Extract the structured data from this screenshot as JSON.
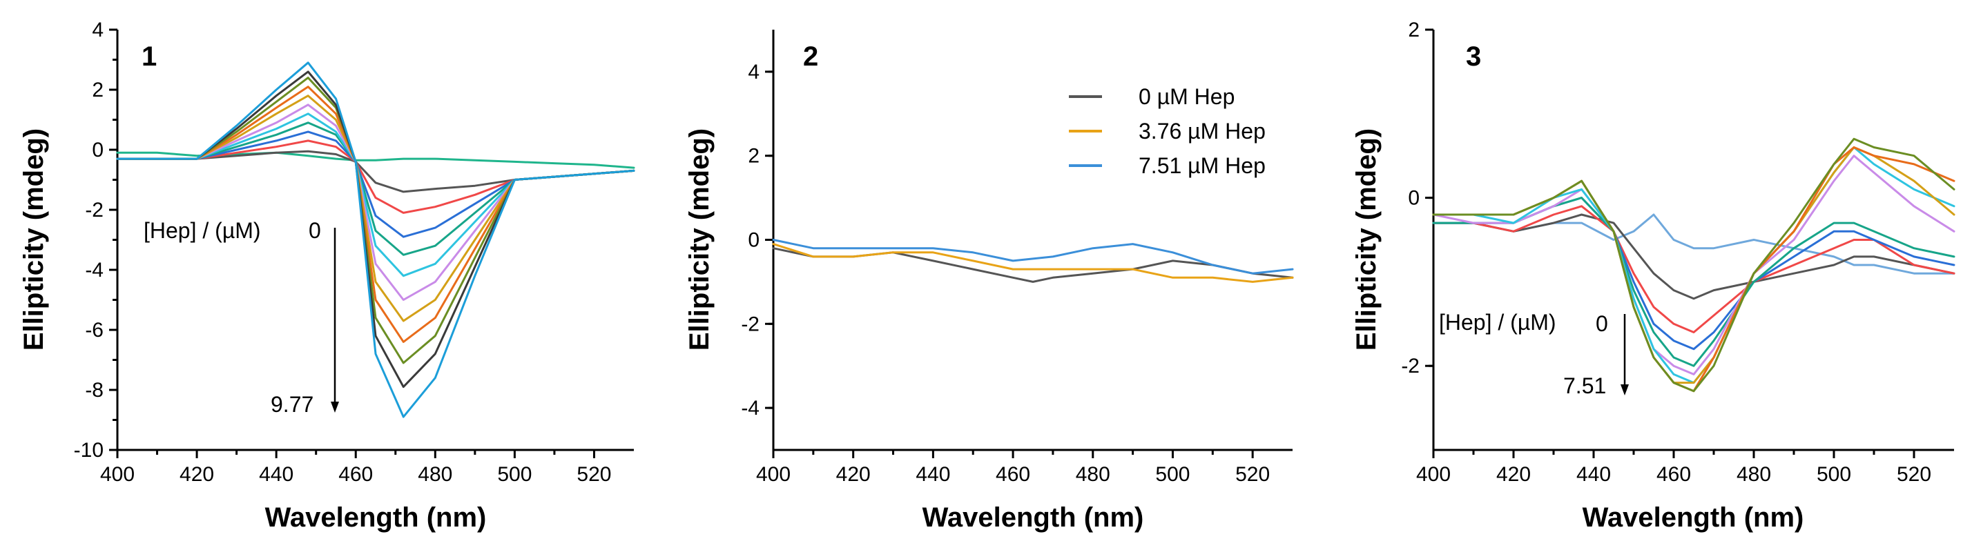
{
  "chart_data": [
    {
      "type": "line",
      "panel_label": "1",
      "xlabel": "Wavelength (nm)",
      "ylabel": "Ellipticity (mdeg)",
      "xlim": [
        400,
        530
      ],
      "ylim": [
        -10,
        4
      ],
      "xticks": [
        400,
        420,
        440,
        460,
        480,
        500,
        520
      ],
      "yticks": [
        -10,
        -8,
        -6,
        -4,
        -2,
        0,
        2,
        4
      ],
      "annotation": {
        "label": "[Hep] / (µM)",
        "start": "0",
        "end": "9.77"
      },
      "series_colors": [
        "#1fb58c",
        "#555555",
        "#f04848",
        "#2a6fd6",
        "#17a589",
        "#2ec4e0",
        "#c98be8",
        "#d4a017",
        "#e86c1a",
        "#6b8e23",
        "#3a3a3a",
        "#1c9ed9"
      ],
      "series": [
        {
          "name": "0",
          "x": [
            400,
            410,
            420,
            430,
            440,
            448,
            455,
            460,
            465,
            472,
            480,
            490,
            500,
            510,
            520,
            530
          ],
          "values": [
            -0.1,
            -0.1,
            -0.2,
            -0.15,
            -0.1,
            -0.2,
            -0.3,
            -0.35,
            -0.35,
            -0.3,
            -0.3,
            -0.35,
            -0.4,
            -0.45,
            -0.5,
            -0.6
          ]
        },
        {
          "name": "s1",
          "x": [
            400,
            410,
            420,
            430,
            440,
            448,
            455,
            460,
            465,
            472,
            480,
            490,
            500,
            510,
            520,
            530
          ],
          "values": [
            -0.3,
            -0.3,
            -0.3,
            -0.2,
            -0.1,
            -0.05,
            -0.15,
            -0.4,
            -1.1,
            -1.4,
            -1.3,
            -1.2,
            -1.0,
            -0.9,
            -0.8,
            -0.7
          ]
        },
        {
          "name": "s2",
          "x": [
            400,
            410,
            420,
            430,
            440,
            448,
            455,
            460,
            465,
            472,
            480,
            490,
            500,
            510,
            520,
            530
          ],
          "values": [
            -0.3,
            -0.3,
            -0.3,
            -0.1,
            0.1,
            0.3,
            0.1,
            -0.4,
            -1.6,
            -2.1,
            -1.9,
            -1.5,
            -1.0,
            -0.9,
            -0.8,
            -0.7
          ]
        },
        {
          "name": "s3",
          "x": [
            400,
            410,
            420,
            430,
            440,
            448,
            455,
            460,
            465,
            472,
            480,
            490,
            500,
            510,
            520,
            530
          ],
          "values": [
            -0.3,
            -0.3,
            -0.3,
            0.0,
            0.3,
            0.6,
            0.3,
            -0.4,
            -2.2,
            -2.9,
            -2.6,
            -1.8,
            -1.0,
            -0.9,
            -0.8,
            -0.7
          ]
        },
        {
          "name": "s4",
          "x": [
            400,
            410,
            420,
            430,
            440,
            448,
            455,
            460,
            465,
            472,
            480,
            490,
            500,
            510,
            520,
            530
          ],
          "values": [
            -0.3,
            -0.3,
            -0.3,
            0.1,
            0.5,
            0.9,
            0.5,
            -0.4,
            -2.7,
            -3.5,
            -3.2,
            -2.1,
            -1.0,
            -0.9,
            -0.8,
            -0.7
          ]
        },
        {
          "name": "s5",
          "x": [
            400,
            410,
            420,
            430,
            440,
            448,
            455,
            460,
            465,
            472,
            480,
            490,
            500,
            510,
            520,
            530
          ],
          "values": [
            -0.3,
            -0.3,
            -0.3,
            0.2,
            0.7,
            1.2,
            0.6,
            -0.4,
            -3.2,
            -4.2,
            -3.8,
            -2.4,
            -1.0,
            -0.9,
            -0.8,
            -0.7
          ]
        },
        {
          "name": "s6",
          "x": [
            400,
            410,
            420,
            430,
            440,
            448,
            455,
            460,
            465,
            472,
            480,
            490,
            500,
            510,
            520,
            530
          ],
          "values": [
            -0.3,
            -0.3,
            -0.3,
            0.3,
            0.9,
            1.5,
            0.8,
            -0.4,
            -3.8,
            -5.0,
            -4.4,
            -2.7,
            -1.0,
            -0.9,
            -0.8,
            -0.7
          ]
        },
        {
          "name": "s7",
          "x": [
            400,
            410,
            420,
            430,
            440,
            448,
            455,
            460,
            465,
            472,
            480,
            490,
            500,
            510,
            520,
            530
          ],
          "values": [
            -0.3,
            -0.3,
            -0.3,
            0.4,
            1.2,
            1.8,
            1.0,
            -0.4,
            -4.4,
            -5.7,
            -5.0,
            -3.0,
            -1.0,
            -0.9,
            -0.8,
            -0.7
          ]
        },
        {
          "name": "s8",
          "x": [
            400,
            410,
            420,
            430,
            440,
            448,
            455,
            460,
            465,
            472,
            480,
            490,
            500,
            510,
            520,
            530
          ],
          "values": [
            -0.3,
            -0.3,
            -0.3,
            0.5,
            1.4,
            2.1,
            1.2,
            -0.4,
            -5.0,
            -6.4,
            -5.6,
            -3.3,
            -1.0,
            -0.9,
            -0.8,
            -0.7
          ]
        },
        {
          "name": "s9",
          "x": [
            400,
            410,
            420,
            430,
            440,
            448,
            455,
            460,
            465,
            472,
            480,
            490,
            500,
            510,
            520,
            530
          ],
          "values": [
            -0.3,
            -0.3,
            -0.3,
            0.6,
            1.6,
            2.4,
            1.4,
            -0.4,
            -5.6,
            -7.1,
            -6.2,
            -3.6,
            -1.0,
            -0.9,
            -0.8,
            -0.7
          ]
        },
        {
          "name": "s10",
          "x": [
            400,
            410,
            420,
            430,
            440,
            448,
            455,
            460,
            465,
            472,
            480,
            490,
            500,
            510,
            520,
            530
          ],
          "values": [
            -0.3,
            -0.3,
            -0.3,
            0.7,
            1.8,
            2.6,
            1.5,
            -0.4,
            -6.2,
            -7.9,
            -6.8,
            -3.9,
            -1.0,
            -0.9,
            -0.8,
            -0.7
          ]
        },
        {
          "name": "9.77",
          "x": [
            400,
            410,
            420,
            430,
            440,
            448,
            455,
            460,
            465,
            472,
            480,
            490,
            500,
            510,
            520,
            530
          ],
          "values": [
            -0.3,
            -0.3,
            -0.3,
            0.8,
            2.0,
            2.9,
            1.7,
            -0.4,
            -6.8,
            -8.9,
            -7.6,
            -4.2,
            -1.0,
            -0.9,
            -0.8,
            -0.7
          ]
        }
      ]
    },
    {
      "type": "line",
      "panel_label": "2",
      "xlabel": "Wavelength (nm)",
      "ylabel": "Ellipticity (mdeg)",
      "xlim": [
        400,
        530
      ],
      "ylim": [
        -5,
        5
      ],
      "xticks": [
        400,
        420,
        440,
        460,
        480,
        500,
        520
      ],
      "yticks": [
        -4,
        -2,
        0,
        2,
        4
      ],
      "legend": [
        "0 µM Hep",
        "3.76 µM Hep",
        "7.51 µM Hep"
      ],
      "series": [
        {
          "name": "0 µM Hep",
          "color": "#555555",
          "x": [
            400,
            410,
            420,
            430,
            440,
            450,
            460,
            465,
            470,
            480,
            490,
            500,
            510,
            520,
            530
          ],
          "values": [
            -0.2,
            -0.4,
            -0.4,
            -0.3,
            -0.5,
            -0.7,
            -0.9,
            -1.0,
            -0.9,
            -0.8,
            -0.7,
            -0.5,
            -0.6,
            -0.8,
            -0.9
          ]
        },
        {
          "name": "3.76 µM Hep",
          "color": "#e8a317",
          "x": [
            400,
            410,
            420,
            430,
            440,
            450,
            460,
            470,
            480,
            490,
            500,
            510,
            520,
            530
          ],
          "values": [
            -0.1,
            -0.4,
            -0.4,
            -0.3,
            -0.3,
            -0.5,
            -0.7,
            -0.7,
            -0.7,
            -0.7,
            -0.9,
            -0.9,
            -1.0,
            -0.9
          ]
        },
        {
          "name": "7.51 µM Hep",
          "color": "#3b8fd9",
          "x": [
            400,
            410,
            420,
            430,
            440,
            450,
            460,
            470,
            480,
            490,
            500,
            510,
            520,
            530
          ],
          "values": [
            0.0,
            -0.2,
            -0.2,
            -0.2,
            -0.2,
            -0.3,
            -0.5,
            -0.4,
            -0.2,
            -0.1,
            -0.3,
            -0.6,
            -0.8,
            -0.7
          ]
        }
      ]
    },
    {
      "type": "line",
      "panel_label": "3",
      "xlabel": "Wavelength (nm)",
      "ylabel": "Ellipticity (mdeg)",
      "xlim": [
        400,
        530
      ],
      "ylim": [
        -3,
        2
      ],
      "xticks": [
        400,
        420,
        440,
        460,
        480,
        500,
        520
      ],
      "yticks": [
        -2,
        0,
        2
      ],
      "annotation": {
        "label": "[Hep] / (µM)",
        "start": "0",
        "end": "7.51"
      },
      "series_colors": [
        "#6fa8dc",
        "#555555",
        "#f04848",
        "#2a6fd6",
        "#17a589",
        "#c98be8",
        "#2ec4e0",
        "#d4a017",
        "#e86c1a",
        "#6b8e23"
      ],
      "series": [
        {
          "name": "0",
          "x": [
            400,
            410,
            420,
            430,
            437,
            445,
            450,
            455,
            460,
            465,
            470,
            480,
            490,
            500,
            505,
            510,
            520,
            530
          ],
          "values": [
            -0.3,
            -0.3,
            -0.4,
            -0.3,
            -0.3,
            -0.5,
            -0.4,
            -0.2,
            -0.5,
            -0.6,
            -0.6,
            -0.5,
            -0.6,
            -0.7,
            -0.8,
            -0.8,
            -0.9,
            -0.9
          ]
        },
        {
          "name": "s1",
          "x": [
            400,
            410,
            420,
            430,
            437,
            445,
            450,
            455,
            460,
            465,
            470,
            480,
            490,
            500,
            505,
            510,
            520,
            530
          ],
          "values": [
            -0.3,
            -0.3,
            -0.4,
            -0.3,
            -0.2,
            -0.3,
            -0.6,
            -0.9,
            -1.1,
            -1.2,
            -1.1,
            -1.0,
            -0.9,
            -0.8,
            -0.7,
            -0.7,
            -0.8,
            -0.9
          ]
        },
        {
          "name": "s2",
          "x": [
            400,
            410,
            420,
            430,
            437,
            445,
            450,
            455,
            460,
            465,
            470,
            480,
            490,
            500,
            505,
            510,
            520,
            530
          ],
          "values": [
            -0.3,
            -0.3,
            -0.4,
            -0.2,
            -0.1,
            -0.4,
            -0.9,
            -1.3,
            -1.5,
            -1.6,
            -1.4,
            -1.0,
            -0.8,
            -0.6,
            -0.5,
            -0.5,
            -0.8,
            -0.9
          ]
        },
        {
          "name": "s3",
          "x": [
            400,
            410,
            420,
            430,
            437,
            445,
            450,
            455,
            460,
            465,
            470,
            480,
            490,
            500,
            505,
            510,
            520,
            530
          ],
          "values": [
            -0.3,
            -0.3,
            -0.3,
            -0.1,
            0.0,
            -0.4,
            -1.0,
            -1.5,
            -1.7,
            -1.8,
            -1.6,
            -1.0,
            -0.7,
            -0.4,
            -0.4,
            -0.5,
            -0.7,
            -0.8
          ]
        },
        {
          "name": "s4",
          "x": [
            400,
            410,
            420,
            430,
            437,
            445,
            450,
            455,
            460,
            465,
            470,
            480,
            490,
            500,
            505,
            510,
            520,
            530
          ],
          "values": [
            -0.3,
            -0.3,
            -0.3,
            -0.1,
            0.0,
            -0.4,
            -1.1,
            -1.6,
            -1.9,
            -2.0,
            -1.7,
            -1.0,
            -0.6,
            -0.3,
            -0.3,
            -0.4,
            -0.6,
            -0.7
          ]
        },
        {
          "name": "s5",
          "x": [
            400,
            410,
            420,
            430,
            437,
            445,
            450,
            455,
            460,
            465,
            470,
            480,
            490,
            500,
            505,
            510,
            520,
            530
          ],
          "values": [
            -0.2,
            -0.3,
            -0.3,
            -0.1,
            0.1,
            -0.4,
            -1.2,
            -1.8,
            -2.0,
            -2.1,
            -1.8,
            -0.9,
            -0.5,
            0.2,
            0.5,
            0.3,
            -0.1,
            -0.4
          ]
        },
        {
          "name": "s6",
          "x": [
            400,
            410,
            420,
            430,
            437,
            445,
            450,
            455,
            460,
            465,
            470,
            480,
            490,
            500,
            505,
            510,
            520,
            530
          ],
          "values": [
            -0.2,
            -0.2,
            -0.3,
            0.0,
            0.1,
            -0.4,
            -1.2,
            -1.8,
            -2.1,
            -2.2,
            -1.9,
            -0.9,
            -0.4,
            0.3,
            0.6,
            0.4,
            0.1,
            -0.1
          ]
        },
        {
          "name": "s7",
          "x": [
            400,
            410,
            420,
            430,
            437,
            445,
            450,
            455,
            460,
            465,
            470,
            480,
            490,
            500,
            505,
            510,
            520,
            530
          ],
          "values": [
            -0.2,
            -0.2,
            -0.2,
            0.0,
            0.2,
            -0.4,
            -1.3,
            -1.9,
            -2.2,
            -2.2,
            -1.9,
            -0.9,
            -0.4,
            0.3,
            0.6,
            0.5,
            0.2,
            -0.2
          ]
        },
        {
          "name": "s8",
          "x": [
            400,
            410,
            420,
            430,
            437,
            445,
            450,
            455,
            460,
            465,
            470,
            480,
            490,
            500,
            505,
            510,
            520,
            530
          ],
          "values": [
            -0.2,
            -0.2,
            -0.2,
            0.0,
            0.2,
            -0.4,
            -1.3,
            -1.9,
            -2.2,
            -2.3,
            -1.9,
            -0.9,
            -0.4,
            0.4,
            0.6,
            0.5,
            0.4,
            0.2
          ]
        },
        {
          "name": "7.51",
          "x": [
            400,
            410,
            420,
            430,
            437,
            445,
            450,
            455,
            460,
            465,
            470,
            480,
            490,
            500,
            505,
            510,
            520,
            530
          ],
          "values": [
            -0.2,
            -0.2,
            -0.2,
            0.0,
            0.2,
            -0.4,
            -1.3,
            -1.9,
            -2.2,
            -2.3,
            -2.0,
            -0.9,
            -0.3,
            0.4,
            0.7,
            0.6,
            0.5,
            0.1
          ]
        }
      ]
    }
  ]
}
